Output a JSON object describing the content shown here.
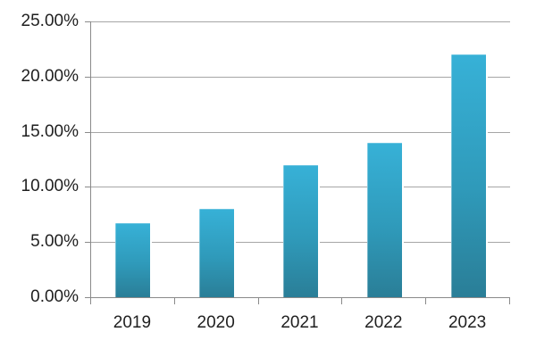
{
  "chart_data": {
    "type": "bar",
    "title": "",
    "xlabel": "",
    "ylabel": "",
    "categories": [
      "2019",
      "2020",
      "2021",
      "2022",
      "2023"
    ],
    "values": [
      6.7,
      8,
      12,
      14,
      22
    ],
    "value_format": "percent",
    "ylim": [
      0,
      25
    ],
    "y_tick_interval": 5,
    "y_ticks": [
      {
        "value": 0,
        "label": "0.00%"
      },
      {
        "value": 5,
        "label": "5.00%"
      },
      {
        "value": 10,
        "label": "10.00%"
      },
      {
        "value": 15,
        "label": "15.00%"
      },
      {
        "value": 20,
        "label": "20.00%"
      },
      {
        "value": 25,
        "label": "25.00%"
      }
    ],
    "grid": "horizontal",
    "legend_position": "none",
    "colors": {
      "bar_gradient_top": "#37b1d7",
      "bar_gradient_bottom": "#2a7e97",
      "gridline": "#a6a6a6",
      "axis": "#8a8a8a",
      "text": "#1f1f1f",
      "background": "#ffffff"
    }
  }
}
